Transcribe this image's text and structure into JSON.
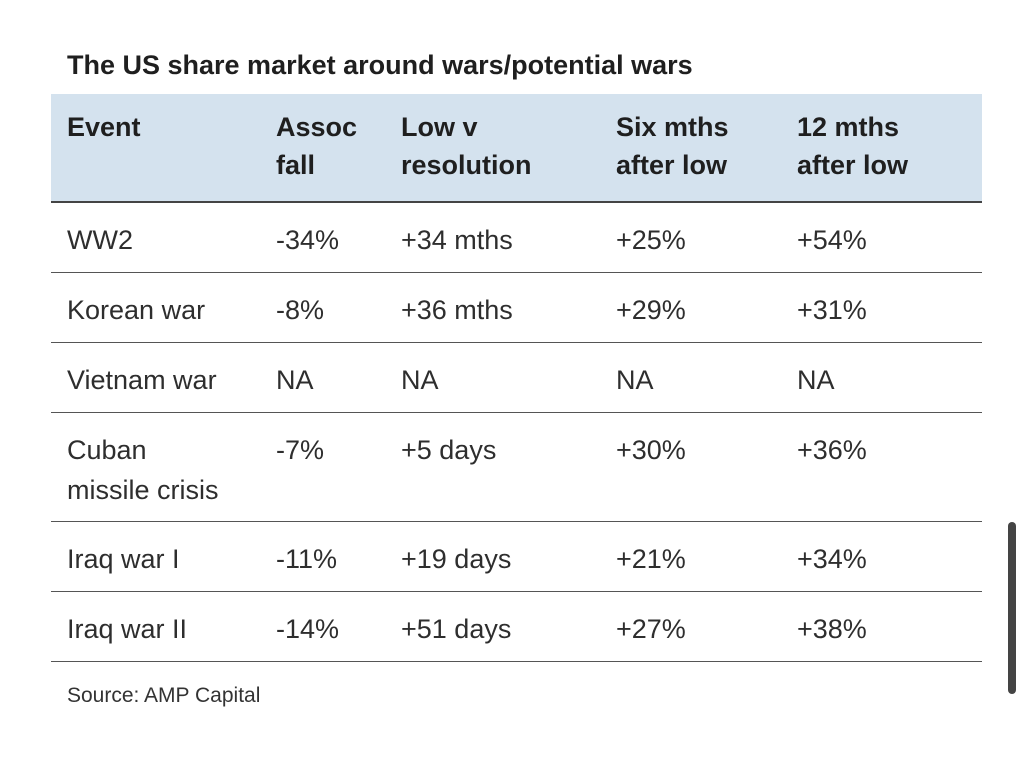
{
  "title": "The US share market around wars/potential wars",
  "table": {
    "headers": [
      "Event",
      "Assoc\nfall",
      "Low v\nresolution",
      "Six mths\nafter low",
      "12 mths\nafter low"
    ],
    "rows": [
      [
        "WW2",
        "-34%",
        "+34 mths",
        "+25%",
        "+54%"
      ],
      [
        "Korean war",
        "-8%",
        "+36 mths",
        "+29%",
        "+31%"
      ],
      [
        "Vietnam war",
        "NA",
        "NA",
        "NA",
        "NA"
      ],
      [
        "Cuban\nmissile crisis",
        "-7%",
        "+5 days",
        "+30%",
        "+36%"
      ],
      [
        "Iraq war I",
        "-11%",
        "+19 days",
        "+21%",
        "+34%"
      ],
      [
        "Iraq war II",
        "-14%",
        "+51 days",
        "+27%",
        "+38%"
      ]
    ]
  },
  "source": "Source: AMP Capital",
  "colors": {
    "header_background": "#d4e2ee",
    "rule": "#444444",
    "scrollbar": "#444444"
  }
}
